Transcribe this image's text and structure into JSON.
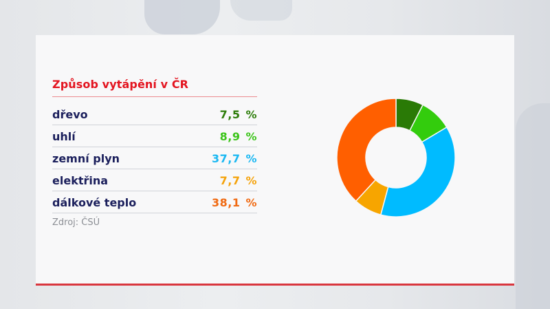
{
  "title": "Způsob vytápění v ČR",
  "source": "Zdroj: ČSÚ",
  "rows": [
    {
      "label": "dřevo",
      "value": "7,5",
      "unit": "%",
      "color": "#2e7d0b"
    },
    {
      "label": "uhlí",
      "value": "8,9",
      "unit": "%",
      "color": "#3cc41a"
    },
    {
      "label": "zemní plyn",
      "value": "37,7",
      "unit": "%",
      "color": "#1bb8f2"
    },
    {
      "label": "elektřina",
      "value": "7,7",
      "unit": "%",
      "color": "#f5a30c"
    },
    {
      "label": "dálkové teplo",
      "value": "38,1",
      "unit": "%",
      "color": "#f06a12"
    }
  ],
  "chart_data": {
    "type": "pie",
    "subtype": "donut",
    "title": "Způsob vytápění v ČR",
    "categories": [
      "dřevo",
      "uhlí",
      "zemní plyn",
      "elektřina",
      "dálkové teplo"
    ],
    "values": [
      7.5,
      8.9,
      37.7,
      7.7,
      38.1
    ],
    "unit": "%",
    "colors": [
      "#2a7a06",
      "#33cc0d",
      "#00bbff",
      "#f7a500",
      "#ff5f00"
    ],
    "start_angle": "12 o'clock",
    "direction": "clockwise",
    "source": "Zdroj: ČSÚ",
    "legend_position": "left (as table)"
  }
}
